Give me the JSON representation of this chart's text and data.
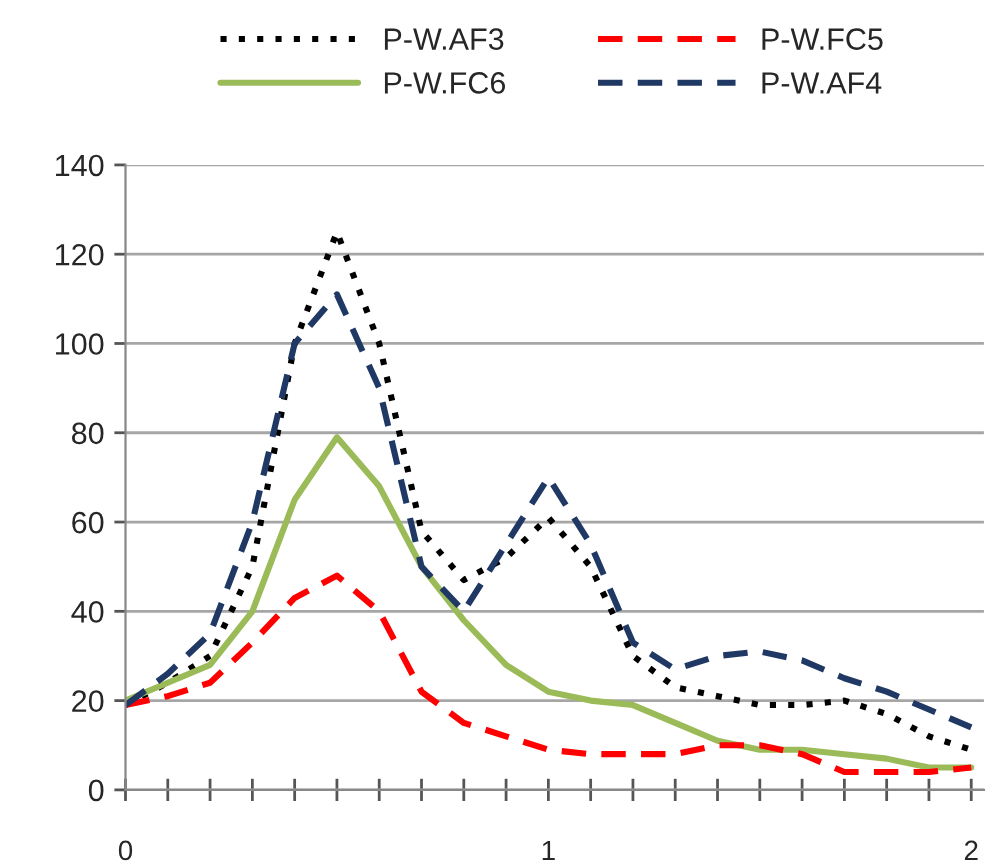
{
  "chart_data": {
    "type": "line",
    "x": [
      0,
      0.1,
      0.2,
      0.3,
      0.4,
      0.5,
      0.6,
      0.7,
      0.8,
      0.9,
      1.0,
      1.1,
      1.2,
      1.3,
      1.4,
      1.5,
      1.6,
      1.7,
      1.8,
      1.9,
      2.0
    ],
    "series": [
      {
        "name": "P-W.AF3",
        "color": "#000000",
        "line_style": "dotted",
        "values": [
          19,
          24,
          30,
          50,
          100,
          125,
          100,
          58,
          47,
          52,
          61,
          50,
          30,
          23,
          21,
          19,
          19,
          20,
          17,
          12,
          9
        ]
      },
      {
        "name": "P-W.FC6",
        "color": "#9bbb59",
        "line_style": "solid",
        "values": [
          20,
          24,
          28,
          40,
          65,
          79,
          68,
          50,
          38,
          28,
          22,
          20,
          19,
          15,
          11,
          9,
          9,
          8,
          7,
          5,
          5
        ]
      },
      {
        "name": "P-W.FC5",
        "color": "#ff0000",
        "line_style": "dashed",
        "values": [
          19,
          21,
          24,
          33,
          43,
          48,
          40,
          22,
          15,
          12,
          9,
          8,
          8,
          8,
          10,
          10,
          8,
          4,
          4,
          4,
          5
        ]
      },
      {
        "name": "P-W.AF4",
        "color": "#1f3864",
        "line_style": "dashed",
        "values": [
          19,
          26,
          35,
          60,
          100,
          111,
          90,
          50,
          40,
          55,
          70,
          55,
          33,
          27,
          30,
          31,
          29,
          25,
          22,
          18,
          14
        ]
      }
    ],
    "xlim": [
      0,
      2.03
    ],
    "xticks": [
      0,
      {
        "value": 0.1,
        "label": null
      },
      {
        "value": 0.2,
        "label": null
      },
      {
        "value": 0.3,
        "label": null
      },
      {
        "value": 0.4,
        "label": null
      },
      {
        "value": 0.5,
        "label": null
      },
      {
        "value": 0.6,
        "label": null
      },
      {
        "value": 0.7,
        "label": null
      },
      {
        "value": 0.8,
        "label": null
      },
      {
        "value": 0.9,
        "label": null
      },
      1,
      {
        "value": 1.1,
        "label": null
      },
      {
        "value": 1.2,
        "label": null
      },
      {
        "value": 1.3,
        "label": null
      },
      {
        "value": 1.4,
        "label": null
      },
      {
        "value": 1.5,
        "label": null
      },
      {
        "value": 1.6,
        "label": null
      },
      {
        "value": 1.7,
        "label": null
      },
      {
        "value": 1.8,
        "label": null
      },
      {
        "value": 1.9,
        "label": null
      },
      2
    ],
    "ylim": [
      0,
      140
    ],
    "yticks": [
      0,
      20,
      40,
      60,
      80,
      100,
      120,
      140
    ],
    "grid": "y",
    "legend": "top"
  }
}
